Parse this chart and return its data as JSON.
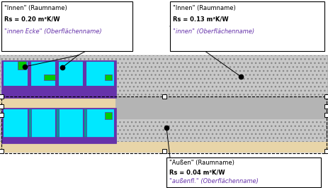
{
  "fig_width": 4.63,
  "fig_height": 2.65,
  "dpi": 100,
  "bg_color": "#ffffff",
  "cyan_color": "#00e8ff",
  "green_color": "#00cc00",
  "purple_color": "#6633aa",
  "gray_color": "#b4b4b4",
  "tan_color": "#e8d5a8",
  "hatch_bg": "#c8c8c8",
  "label_left_line1": "\"Innen\" (Raumname)",
  "label_left_line2": "Rs = 0.20 m²K/W",
  "label_left_line3": "\"innen Ecke\" (Oberflächenname)",
  "label_right_line1": "\"Innen\" (Raumname)",
  "label_right_line2": "Rs = 0.13 m²K/W",
  "label_right_line3": "\"innen\" (Oberflächenname)",
  "label_bottom_line1": "\"Außen\" (Raumname)",
  "label_bottom_line2": "Rs = 0.04 m²K/W",
  "label_bottom_line3": "\"außenfl.\" (Oberflächenname)"
}
